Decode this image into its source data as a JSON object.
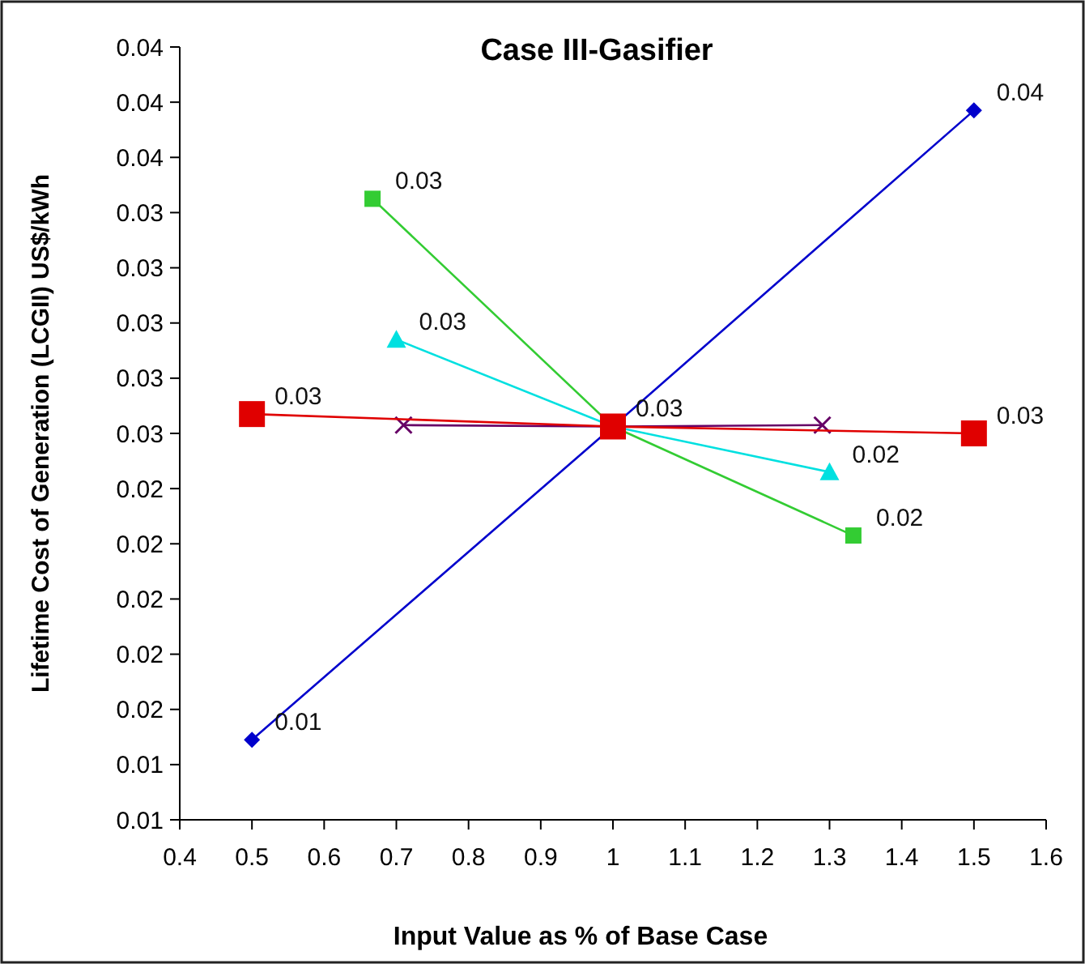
{
  "chart_data": {
    "type": "line",
    "title": "Case III-Gasifier",
    "xlabel": "Input Value as % of Base Case",
    "ylabel": "Lifetime Cost of Generation (LCGII) US$/kWh",
    "xlim": [
      0.4,
      1.6
    ],
    "xticks": [
      0.4,
      0.5,
      0.6,
      0.7,
      0.8,
      0.9,
      1,
      1.1,
      1.2,
      1.3,
      1.4,
      1.5,
      1.6
    ],
    "ylim": [
      0.012,
      0.04
    ],
    "yticks": [
      {
        "value": 0.012,
        "label": "0.01"
      },
      {
        "value": 0.014,
        "label": "0.01"
      },
      {
        "value": 0.016,
        "label": "0.02"
      },
      {
        "value": 0.018,
        "label": "0.02"
      },
      {
        "value": 0.02,
        "label": "0.02"
      },
      {
        "value": 0.022,
        "label": "0.02"
      },
      {
        "value": 0.024,
        "label": "0.02"
      },
      {
        "value": 0.026,
        "label": "0.03"
      },
      {
        "value": 0.028,
        "label": "0.03"
      },
      {
        "value": 0.03,
        "label": "0.03"
      },
      {
        "value": 0.032,
        "label": "0.03"
      },
      {
        "value": 0.034,
        "label": "0.03"
      },
      {
        "value": 0.036,
        "label": "0.04"
      },
      {
        "value": 0.038,
        "label": "0.04"
      },
      {
        "value": 0.04,
        "label": "0.04"
      }
    ],
    "grid": false,
    "series": [
      {
        "color": "#0000cc",
        "marker": "diamond",
        "x": [
          0.5,
          1,
          1.5
        ],
        "values": [
          0.0149,
          0.02625,
          0.0377
        ],
        "value_labels": [
          "0.01",
          null,
          "0.04"
        ]
      },
      {
        "color": "#33cc33",
        "marker": "square",
        "x": [
          0.667,
          1,
          1.333
        ],
        "values": [
          0.0345,
          0.02625,
          0.0223
        ],
        "value_labels": [
          "0.03",
          null,
          "0.02"
        ]
      },
      {
        "color": "#00e0e0",
        "marker": "triangle",
        "x": [
          0.7,
          1,
          1.3
        ],
        "values": [
          0.0294,
          0.02625,
          0.0246
        ],
        "value_labels": [
          "0.03",
          null,
          "0.02"
        ]
      },
      {
        "color": "#660066",
        "marker": "cross",
        "x": [
          0.71,
          1,
          1.29
        ],
        "values": [
          0.0263,
          0.02625,
          0.0263
        ]
      },
      {
        "color": "#e00000",
        "marker": "square",
        "x": [
          0.5,
          1,
          1.5
        ],
        "values": [
          0.0267,
          0.02625,
          0.026
        ],
        "value_labels": [
          "0.03",
          "0.03",
          "0.03"
        ]
      }
    ]
  }
}
